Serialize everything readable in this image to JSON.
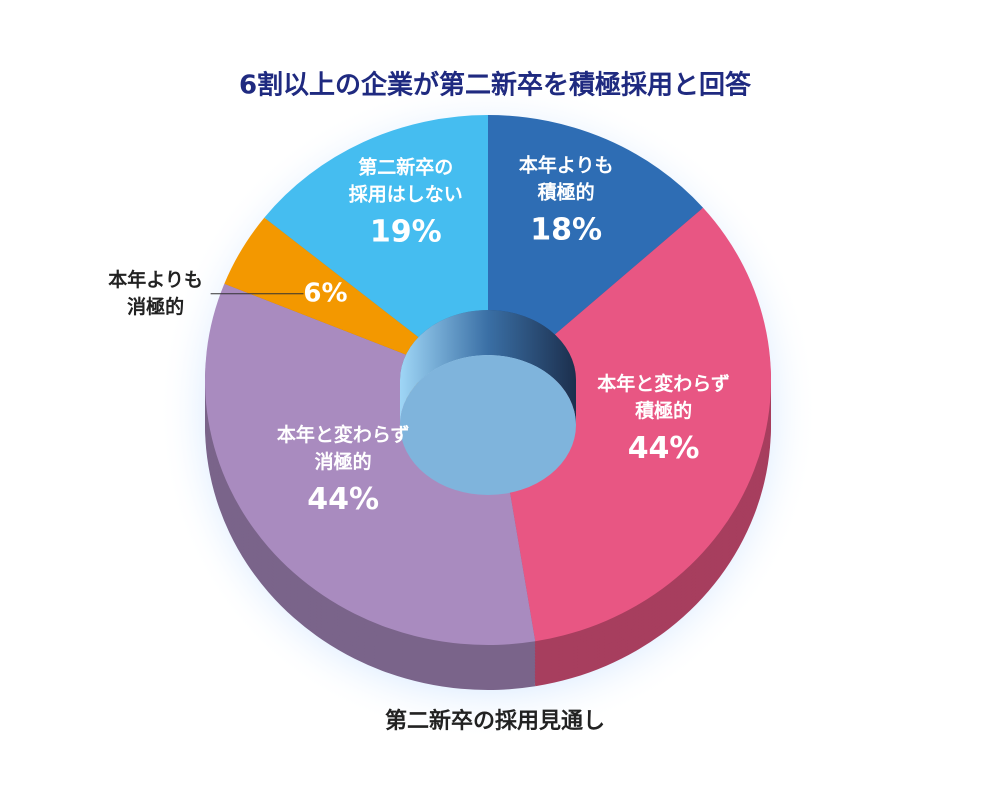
{
  "chart_data": {
    "type": "pie",
    "title": "6割以上の企業が第二新卒を積極採用と回答",
    "caption": "第二新卒の採用見通し",
    "categories": [
      [
        "本年よりも",
        "積極的"
      ],
      [
        "本年と変わらず",
        "積極的"
      ],
      [
        "本年と変わらず",
        "消極的"
      ],
      [
        "本年よりも",
        "消極的"
      ],
      [
        "第二新卒の",
        "採用はしない"
      ]
    ],
    "values": [
      18,
      44,
      44,
      6,
      19
    ],
    "value_labels": [
      "18%",
      "44%",
      "44%",
      "6%",
      "19%"
    ],
    "colors": [
      "#2e6db4",
      "#e85683",
      "#a98bbf",
      "#f39800",
      "#45bdf0"
    ],
    "donut": true
  }
}
